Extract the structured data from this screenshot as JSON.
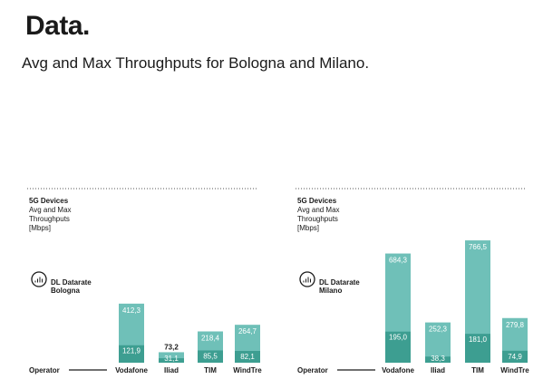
{
  "header": {
    "brand": "Data",
    "brand_dot": ".",
    "subtitle": "Avg and Max Throughputs for Bologna and Milano."
  },
  "colors": {
    "max_bar": "#6fc0b8",
    "avg_bar": "#3d9e91",
    "dotted_line": "#555555"
  },
  "chart_data": [
    {
      "type": "bar",
      "panel_title": "5G Devices",
      "panel_subtitle_lines": [
        "Avg and Max",
        "Throughputs",
        "[Mbps]"
      ],
      "icon": "signal-tower-icon",
      "legend_lines": [
        "DL Datarate",
        "Bologna"
      ],
      "xlabel": "Operator",
      "categories": [
        "Vodafone",
        "Iliad",
        "TIM",
        "WindTre"
      ],
      "series": [
        {
          "name": "Max",
          "values": [
            412.3,
            73.2,
            218.4,
            264.7
          ]
        },
        {
          "name": "Avg",
          "values": [
            121.9,
            31.1,
            85.5,
            82.1
          ]
        }
      ],
      "max_labels": [
        "412,3",
        "73,2",
        "218,4",
        "264,7"
      ],
      "avg_labels": [
        "121,9",
        "31,1",
        "85,5",
        "82,1"
      ]
    },
    {
      "type": "bar",
      "panel_title": "5G Devices",
      "panel_subtitle_lines": [
        "Avg and Max",
        "Throughputs",
        "[Mbps]"
      ],
      "icon": "signal-tower-icon",
      "legend_lines": [
        "DL Datarate",
        "Milano"
      ],
      "xlabel": "Operator",
      "categories": [
        "Vodafone",
        "Iliad",
        "TIM",
        "WindTre"
      ],
      "series": [
        {
          "name": "Max",
          "values": [
            684.3,
            252.3,
            766.5,
            279.8
          ]
        },
        {
          "name": "Avg",
          "values": [
            195.0,
            38.3,
            181.0,
            74.9
          ]
        }
      ],
      "max_labels": [
        "684,3",
        "252,3",
        "766,5",
        "279,8"
      ],
      "avg_labels": [
        "195,0",
        "38,3",
        "181,0",
        "74,9"
      ]
    }
  ]
}
